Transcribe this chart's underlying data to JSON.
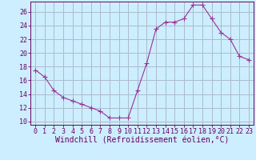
{
  "x": [
    0,
    1,
    2,
    3,
    4,
    5,
    6,
    7,
    8,
    9,
    10,
    11,
    12,
    13,
    14,
    15,
    16,
    17,
    18,
    19,
    20,
    21,
    22,
    23
  ],
  "y": [
    17.5,
    16.5,
    14.5,
    13.5,
    13.0,
    12.5,
    12.0,
    11.5,
    10.5,
    10.5,
    10.5,
    14.5,
    18.5,
    23.5,
    24.5,
    24.5,
    25.0,
    27.0,
    27.0,
    25.0,
    23.0,
    22.0,
    19.5,
    19.0
  ],
  "line_color": "#993399",
  "marker": "D",
  "marker_size": 2.0,
  "bg_color": "#cceeff",
  "grid_color": "#aabbcc",
  "xlabel": "Windchill (Refroidissement éolien,°C)",
  "xlabel_fontsize": 7.0,
  "tick_fontsize": 6.0,
  "xlim": [
    -0.5,
    23.5
  ],
  "ylim": [
    9.5,
    27.5
  ],
  "yticks": [
    10,
    12,
    14,
    16,
    18,
    20,
    22,
    24,
    26
  ],
  "xticks": [
    0,
    1,
    2,
    3,
    4,
    5,
    6,
    7,
    8,
    9,
    10,
    11,
    12,
    13,
    14,
    15,
    16,
    17,
    18,
    19,
    20,
    21,
    22,
    23
  ]
}
